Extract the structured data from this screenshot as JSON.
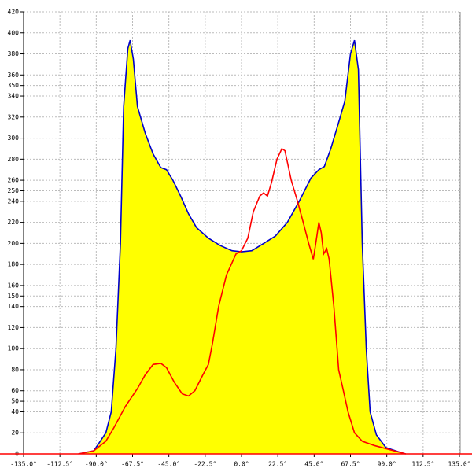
{
  "chart_data": {
    "type": "area",
    "xlim": [
      -135,
      135
    ],
    "ylim": [
      0,
      420
    ],
    "grid": true,
    "xticks": [
      {
        "value": -135,
        "label": "-135.0°"
      },
      {
        "value": -112.5,
        "label": "-112.5°"
      },
      {
        "value": -90,
        "label": "-90.0°"
      },
      {
        "value": -67.5,
        "label": "-67.5°"
      },
      {
        "value": -45,
        "label": "-45.0°"
      },
      {
        "value": -22.5,
        "label": "-22.5°"
      },
      {
        "value": 0,
        "label": "0.0°"
      },
      {
        "value": 22.5,
        "label": "22.5°"
      },
      {
        "value": 45,
        "label": "45.0°"
      },
      {
        "value": 67.5,
        "label": "67.5°"
      },
      {
        "value": 90,
        "label": "90.0°"
      },
      {
        "value": 112.5,
        "label": "112.5°"
      },
      {
        "value": 135,
        "label": "135.0°"
      }
    ],
    "yticks": [
      0,
      20,
      40,
      50,
      60,
      80,
      100,
      120,
      140,
      150,
      160,
      180,
      200,
      220,
      240,
      250,
      260,
      280,
      300,
      320,
      340,
      350,
      360,
      380,
      400,
      420
    ],
    "series": [
      {
        "color": "#0000cc",
        "fill": "#ffff00",
        "x": [
          -101,
          -91.5,
          -84,
          -80.7,
          -77.8,
          -75,
          -73,
          -70.4,
          -69,
          -67,
          -64.5,
          -59.7,
          -54.8,
          -50,
          -46.5,
          -42.5,
          -37.7,
          -32.8,
          -27.9,
          -20.5,
          -13.2,
          -5.9,
          0,
          6.4,
          13.7,
          21,
          28.4,
          35.7,
          43,
          47.9,
          51.3,
          55.3,
          60.2,
          64,
          67.5,
          70,
          72.4,
          74.8,
          77.3,
          79.7,
          83.6,
          89.5,
          99.3,
          101.7
        ],
        "values": [
          0,
          3,
          20,
          40,
          100,
          200,
          330,
          385,
          393,
          375,
          330,
          305,
          285,
          272,
          270,
          260,
          245,
          228,
          215,
          205,
          198,
          193,
          192,
          193,
          200,
          207,
          220,
          240,
          262,
          270,
          273,
          290,
          315,
          335,
          380,
          393,
          365,
          200,
          100,
          40,
          18,
          6,
          1,
          0
        ]
      },
      {
        "color": "#ff0000",
        "x": [
          -101,
          -91.5,
          -84,
          -79,
          -72,
          -64.5,
          -59.7,
          -54.8,
          -50,
          -46.5,
          -41.6,
          -36.7,
          -32.8,
          -28.9,
          -24,
          -20.5,
          -18,
          -14.2,
          -9.3,
          -3.4,
          0,
          3.9,
          7.3,
          11.3,
          13.7,
          16.1,
          18.6,
          22,
          25,
          26.9,
          30.8,
          34.7,
          38.2,
          41.6,
          44.5,
          46.5,
          47.9,
          49.4,
          50.9,
          52.8,
          54.3,
          57.2,
          60.2,
          63.1,
          66,
          70,
          74.8,
          82.2,
          89.5,
          96.8,
          101.7
        ],
        "values": [
          0,
          3,
          12,
          25,
          45,
          62,
          75,
          85,
          86,
          82,
          68,
          57,
          55,
          60,
          75,
          85,
          105,
          140,
          170,
          190,
          193,
          205,
          230,
          245,
          248,
          245,
          258,
          280,
          290,
          288,
          260,
          240,
          220,
          200,
          185,
          205,
          220,
          210,
          190,
          195,
          185,
          140,
          80,
          60,
          40,
          20,
          12,
          8,
          5,
          2,
          0
        ]
      }
    ]
  }
}
